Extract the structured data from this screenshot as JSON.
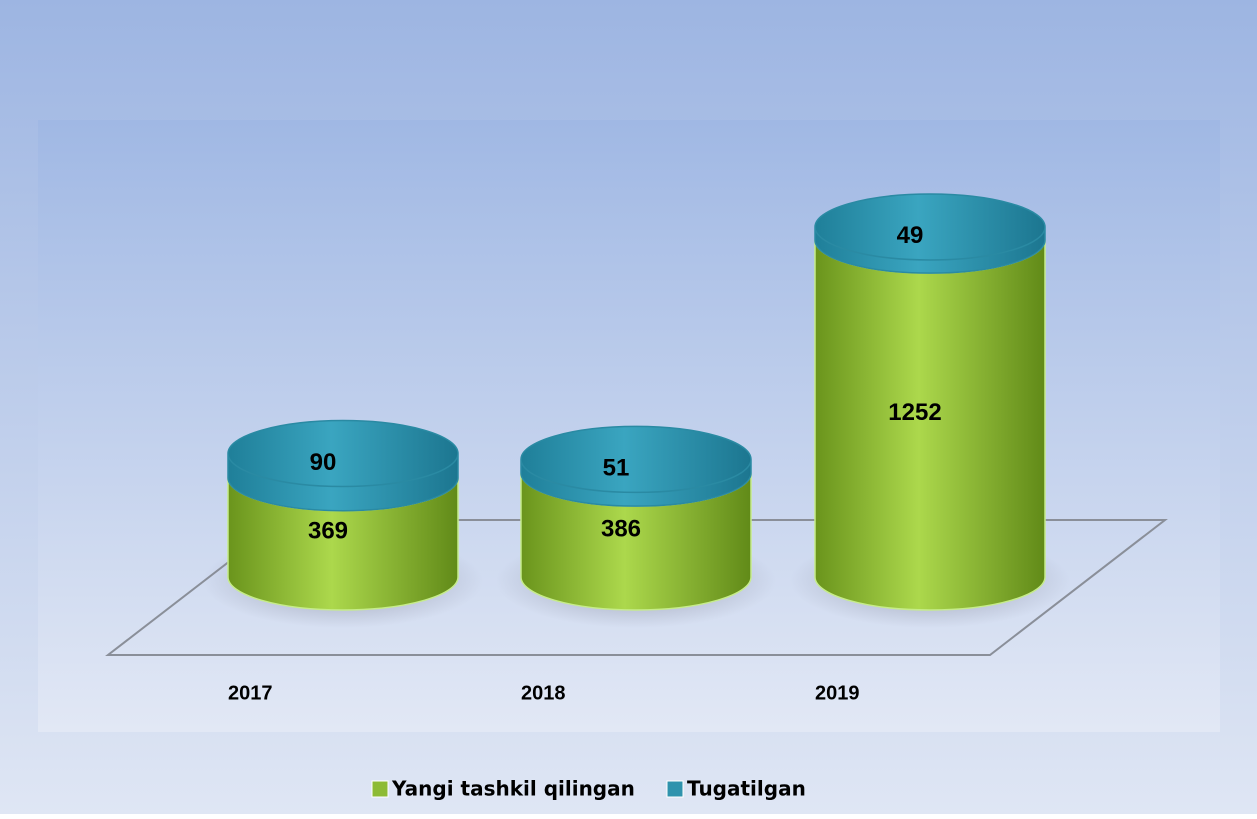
{
  "chart_data": {
    "type": "bar",
    "stacked": true,
    "categories": [
      "2017",
      "2018",
      "2019"
    ],
    "series": [
      {
        "name": "Yangi tashkil qilingan",
        "color": "#8dbb34",
        "values": [
          369,
          386,
          1252
        ]
      },
      {
        "name": "Tugatilgan",
        "color": "#2f93ad",
        "values": [
          90,
          51,
          49
        ]
      }
    ]
  }
}
